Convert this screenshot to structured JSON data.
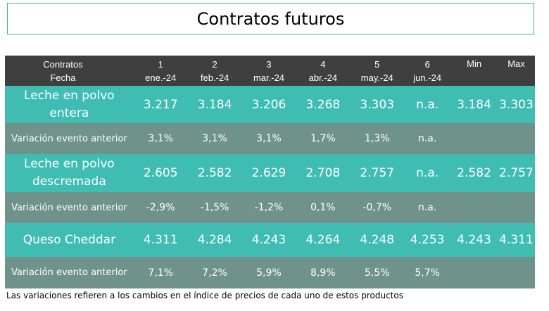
{
  "title": "Contratos futuros",
  "header": {
    "label_line1": "Contratos",
    "label_line2": "Fecha",
    "columns": [
      {
        "num": "1",
        "date": "ene.-24"
      },
      {
        "num": "2",
        "date": "feb.-24"
      },
      {
        "num": "3",
        "date": "mar.-24"
      },
      {
        "num": "4",
        "date": "abr.-24"
      },
      {
        "num": "5",
        "date": "may.-24"
      },
      {
        "num": "6",
        "date": "jun.-24"
      }
    ],
    "min": "Min",
    "max": "Max"
  },
  "rows": [
    {
      "name_line1": "Leche en polvo",
      "name_line2": "entera",
      "values": [
        "3.217",
        "3.184",
        "3.206",
        "3.268",
        "3.303",
        "n.a."
      ],
      "min": "3.184",
      "max": "3.303"
    },
    {
      "label": "Variación evento anterior",
      "values": [
        "3,1%",
        "3,1%",
        "3,1%",
        "1,7%",
        "1,3%",
        "n.a."
      ]
    },
    {
      "name_line1": "Leche en polvo",
      "name_line2": "descremada",
      "values": [
        "2.605",
        "2.582",
        "2.629",
        "2.708",
        "2.757",
        "n.a."
      ],
      "min": "2.582",
      "max": "2.757"
    },
    {
      "label": "Variación evento anterior",
      "values": [
        "-2,9%",
        "-1,5%",
        "-1,2%",
        "0,1%",
        "-0,7%",
        "n.a."
      ]
    },
    {
      "name_line1": "Queso Cheddar",
      "values": [
        "4.311",
        "4.284",
        "4.243",
        "4.264",
        "4.248",
        "4.253"
      ],
      "min": "4.243",
      "max": "4.311"
    },
    {
      "label": "Variación evento anterior",
      "values": [
        "7,1%",
        "7,2%",
        "5,9%",
        "8,9%",
        "5,5%",
        "5,7%"
      ]
    }
  ],
  "colors": {
    "header": "#3f3f3f",
    "product_row": "#3fbdb3",
    "variation_row": "#6f938b",
    "title_border": "#3bb3aa"
  },
  "footnote": "Las variaciones refieren a los cambios en el índice de precios de cada uno de estos productos"
}
